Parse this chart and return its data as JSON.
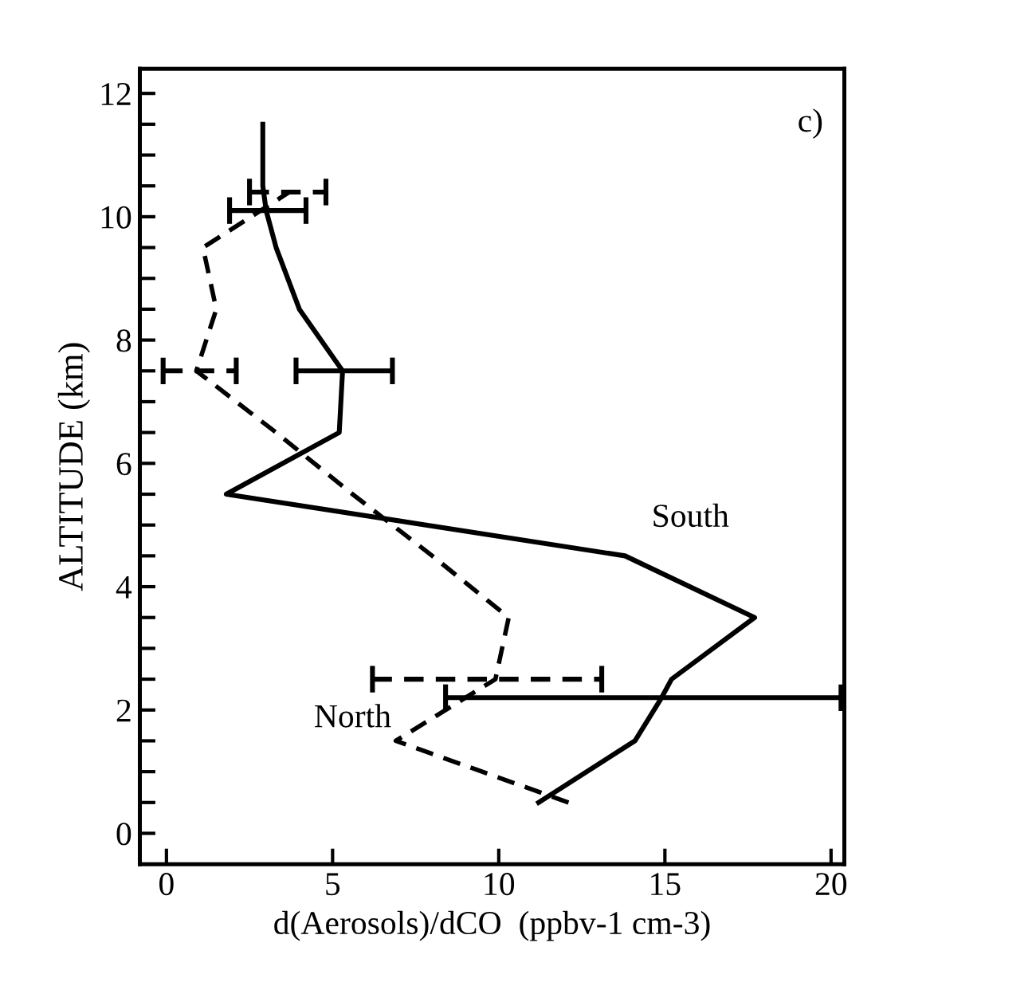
{
  "chart_data": {
    "type": "line",
    "xlabel": "d(Aerosols)/dCO  (ppbv-1 cm-3)",
    "ylabel": "ALTITUDE (km)",
    "xlim": [
      -0.8,
      20.4
    ],
    "ylim": [
      -0.5,
      12.4
    ],
    "xticks": [
      0,
      5,
      10,
      15,
      20
    ],
    "yticks": [
      0,
      {
        "value": 0.5,
        "label": null
      },
      {
        "value": 1,
        "label": null
      },
      {
        "value": 1.5,
        "label": null
      },
      2,
      {
        "value": 2.5,
        "label": null
      },
      {
        "value": 3,
        "label": null
      },
      {
        "value": 3.5,
        "label": null
      },
      4,
      {
        "value": 4.5,
        "label": null
      },
      {
        "value": 5,
        "label": null
      },
      {
        "value": 5.5,
        "label": null
      },
      6,
      {
        "value": 6.5,
        "label": null
      },
      {
        "value": 7,
        "label": null
      },
      {
        "value": 7.5,
        "label": null
      },
      8,
      {
        "value": 8.5,
        "label": null
      },
      {
        "value": 9,
        "label": null
      },
      {
        "value": 9.5,
        "label": null
      },
      10,
      {
        "value": 10.5,
        "label": null
      },
      {
        "value": 11,
        "label": null
      },
      {
        "value": 11.5,
        "label": null
      },
      12
    ],
    "grid": false,
    "legend": false,
    "marker": "none",
    "series": [
      {
        "name": "South",
        "color": "#000000",
        "line_style": "solid",
        "x": [
          11.2,
          14.1,
          14.9,
          15.2,
          17.7,
          13.8,
          1.8,
          5.2,
          5.3,
          4.0,
          3.3,
          3.0,
          2.9,
          2.9
        ],
        "values": [
          0.5,
          1.5,
          2.2,
          2.5,
          3.5,
          4.5,
          5.5,
          6.5,
          7.5,
          8.5,
          9.5,
          10.1,
          10.5,
          11.5
        ],
        "xerrors": [
          null,
          null,
          [
            8.4,
            20.3
          ],
          null,
          null,
          null,
          null,
          null,
          [
            3.9,
            6.8
          ],
          null,
          null,
          [
            1.9,
            4.2
          ],
          null,
          null
        ]
      },
      {
        "name": "North",
        "color": "#000000",
        "line_style": "dashed",
        "x": [
          12.1,
          6.9,
          9.9,
          10.3,
          8.0,
          5.6,
          3.3,
          0.9,
          1.5,
          1.1,
          3.7
        ],
        "values": [
          0.5,
          1.5,
          2.5,
          3.5,
          4.5,
          5.5,
          6.5,
          7.5,
          8.5,
          9.5,
          10.4
        ],
        "xerrors": [
          null,
          null,
          [
            6.2,
            13.1
          ],
          null,
          null,
          null,
          null,
          [
            -0.1,
            2.1
          ],
          null,
          null,
          [
            2.5,
            4.8
          ]
        ]
      }
    ],
    "annotations": [
      "c)"
    ]
  }
}
